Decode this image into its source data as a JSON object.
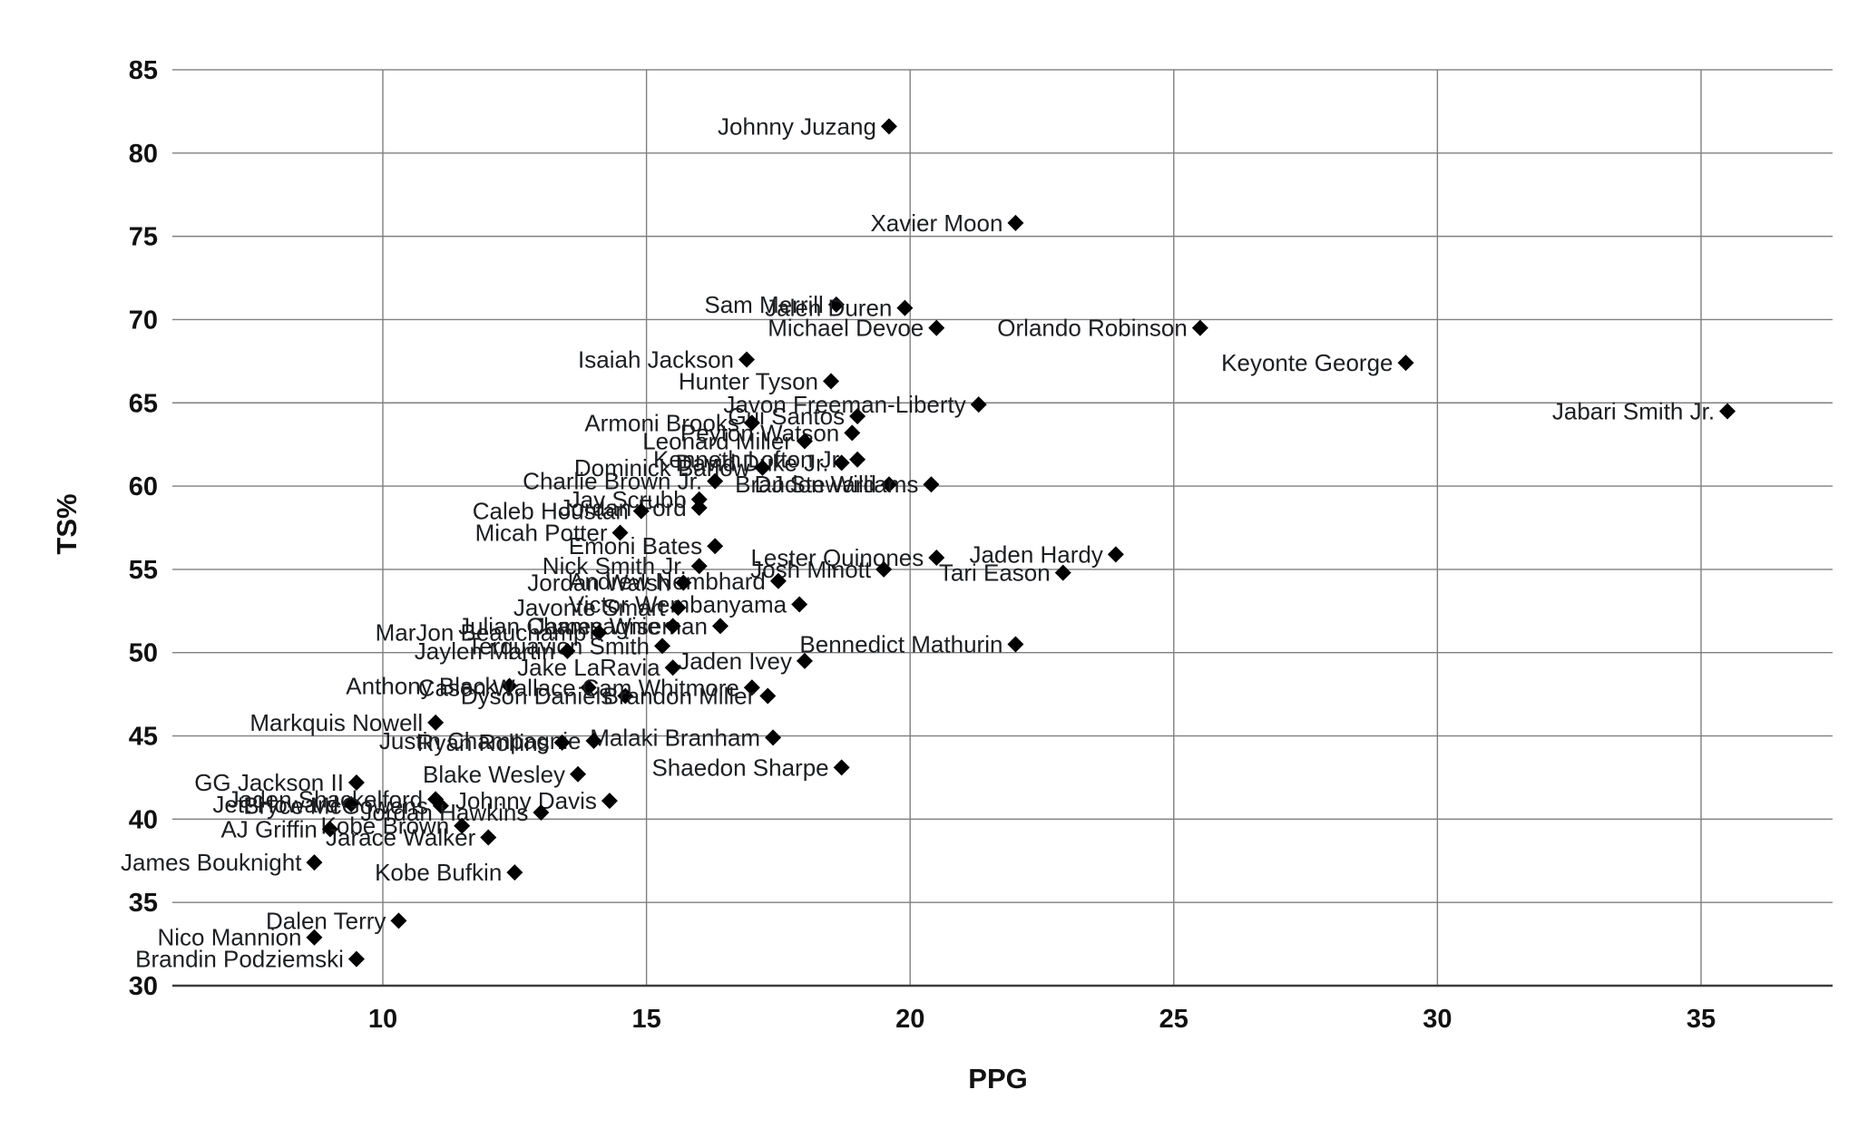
{
  "chart_data": {
    "type": "scatter",
    "title": "",
    "xlabel": "PPG",
    "ylabel": "TS%",
    "xlim": [
      5.3,
      37.5
    ],
    "ylim": [
      30,
      85
    ],
    "x_ticks": [
      10,
      15,
      20,
      25,
      30,
      35
    ],
    "y_ticks": [
      30,
      35,
      40,
      45,
      50,
      55,
      60,
      65,
      70,
      75,
      80,
      85
    ],
    "grid": true,
    "legend": false,
    "marker_shape": "diamond",
    "colors": {
      "marker": "#000000",
      "label_text": "#1c1e21",
      "gridline": "#7f7f7f",
      "axis_line": "#3c3c3c",
      "background": "#ffffff"
    },
    "points": [
      {
        "name": "Johnny Juzang",
        "ppg": 19.6,
        "ts": 81.6
      },
      {
        "name": "Xavier Moon",
        "ppg": 22.0,
        "ts": 75.8
      },
      {
        "name": "Sam Merrill",
        "ppg": 18.6,
        "ts": 70.9
      },
      {
        "name": "Jalen Duren",
        "ppg": 19.9,
        "ts": 70.7
      },
      {
        "name": "Michael Devoe",
        "ppg": 20.5,
        "ts": 69.5
      },
      {
        "name": "Orlando Robinson",
        "ppg": 25.5,
        "ts": 69.5
      },
      {
        "name": "Isaiah Jackson",
        "ppg": 16.9,
        "ts": 67.6
      },
      {
        "name": "Keyonte George",
        "ppg": 29.4,
        "ts": 67.4
      },
      {
        "name": "Hunter Tyson",
        "ppg": 18.5,
        "ts": 66.3
      },
      {
        "name": "Javon Freeman-Liberty",
        "ppg": 21.3,
        "ts": 64.9
      },
      {
        "name": "Jabari Smith Jr.",
        "ppg": 35.5,
        "ts": 64.5
      },
      {
        "name": "Gui Santos",
        "ppg": 19.0,
        "ts": 64.2
      },
      {
        "name": "Armoni Brooks",
        "ppg": 17.0,
        "ts": 63.8
      },
      {
        "name": "Peyton Watson",
        "ppg": 18.9,
        "ts": 63.2
      },
      {
        "name": "Leonard Miller",
        "ppg": 18.0,
        "ts": 62.7
      },
      {
        "name": "Kenneth Lofton Jr.",
        "ppg": 19.0,
        "ts": 61.6
      },
      {
        "name": "David Duke Jr.",
        "ppg": 18.7,
        "ts": 61.4
      },
      {
        "name": "Dominick Barlow",
        "ppg": 17.2,
        "ts": 61.1
      },
      {
        "name": "Charlie Brown Jr.",
        "ppg": 16.3,
        "ts": 60.3
      },
      {
        "name": "DJ Steward",
        "ppg": 19.6,
        "ts": 60.1
      },
      {
        "name": "Brandon Williams",
        "ppg": 20.4,
        "ts": 60.1
      },
      {
        "name": "Jay Scrubb",
        "ppg": 16.0,
        "ts": 59.2
      },
      {
        "name": "Jordan Ford",
        "ppg": 16.0,
        "ts": 58.7
      },
      {
        "name": "Caleb Houstan",
        "ppg": 14.9,
        "ts": 58.5
      },
      {
        "name": "Micah Potter",
        "ppg": 14.5,
        "ts": 57.2
      },
      {
        "name": "Emoni Bates",
        "ppg": 16.3,
        "ts": 56.4
      },
      {
        "name": "Jaden Hardy",
        "ppg": 23.9,
        "ts": 55.9
      },
      {
        "name": "Lester Quinones",
        "ppg": 20.5,
        "ts": 55.7
      },
      {
        "name": "Nick Smith Jr.",
        "ppg": 16.0,
        "ts": 55.2
      },
      {
        "name": "Josh Minott",
        "ppg": 19.5,
        "ts": 55.0
      },
      {
        "name": "Tari Eason",
        "ppg": 22.9,
        "ts": 54.8
      },
      {
        "name": "Andrew Nembhard",
        "ppg": 17.5,
        "ts": 54.3
      },
      {
        "name": "Jordan Walsh",
        "ppg": 15.7,
        "ts": 54.2
      },
      {
        "name": "Victor Wembanyama",
        "ppg": 17.9,
        "ts": 52.9
      },
      {
        "name": "Javonte Smart",
        "ppg": 15.6,
        "ts": 52.7
      },
      {
        "name": "James Wiseman",
        "ppg": 16.4,
        "ts": 51.6
      },
      {
        "name": "Julian Champagnie",
        "ppg": 15.5,
        "ts": 51.6
      },
      {
        "name": "MarJon Beauchamp",
        "ppg": 14.1,
        "ts": 51.2
      },
      {
        "name": "Bennedict Mathurin",
        "ppg": 22.0,
        "ts": 50.5
      },
      {
        "name": "Terquavion Smith",
        "ppg": 15.3,
        "ts": 50.4
      },
      {
        "name": "Jaylen Martin",
        "ppg": 13.5,
        "ts": 50.1
      },
      {
        "name": "Jaden Ivey",
        "ppg": 18.0,
        "ts": 49.5
      },
      {
        "name": "Jake LaRavia",
        "ppg": 15.5,
        "ts": 49.1
      },
      {
        "name": "Anthony Black",
        "ppg": 12.4,
        "ts": 48.0
      },
      {
        "name": "Cason Wallace",
        "ppg": 13.9,
        "ts": 47.9
      },
      {
        "name": "Cam Whitmore",
        "ppg": 17.0,
        "ts": 47.9
      },
      {
        "name": "Dyson Daniels",
        "ppg": 14.6,
        "ts": 47.4
      },
      {
        "name": "Brandon Miller",
        "ppg": 17.3,
        "ts": 47.4
      },
      {
        "name": "Markquis Nowell",
        "ppg": 11.0,
        "ts": 45.8
      },
      {
        "name": "Malaki Branham",
        "ppg": 17.4,
        "ts": 44.9
      },
      {
        "name": "Justin Champagnie",
        "ppg": 14.0,
        "ts": 44.7
      },
      {
        "name": "Ryan Rollins",
        "ppg": 13.4,
        "ts": 44.6
      },
      {
        "name": "Shaedon Sharpe",
        "ppg": 18.7,
        "ts": 43.1
      },
      {
        "name": "Blake Wesley",
        "ppg": 13.7,
        "ts": 42.7
      },
      {
        "name": "GG Jackson II",
        "ppg": 9.5,
        "ts": 42.2
      },
      {
        "name": "Jaden Shackelford",
        "ppg": 11.0,
        "ts": 41.2
      },
      {
        "name": "Johnny Davis",
        "ppg": 14.3,
        "ts": 41.1
      },
      {
        "name": "Jett Howard",
        "ppg": 9.4,
        "ts": 40.9
      },
      {
        "name": "Bryce McGowens",
        "ppg": 11.1,
        "ts": 40.8
      },
      {
        "name": "Jordan Hawkins",
        "ppg": 13.0,
        "ts": 40.4
      },
      {
        "name": "Kobe Brown",
        "ppg": 11.5,
        "ts": 39.6
      },
      {
        "name": "AJ Griffin",
        "ppg": 9.0,
        "ts": 39.4
      },
      {
        "name": "Jarace Walker",
        "ppg": 12.0,
        "ts": 38.9
      },
      {
        "name": "James Bouknight",
        "ppg": 8.7,
        "ts": 37.4
      },
      {
        "name": "Kobe Bufkin",
        "ppg": 12.5,
        "ts": 36.8
      },
      {
        "name": "Dalen Terry",
        "ppg": 10.3,
        "ts": 33.9
      },
      {
        "name": "Nico Mannion",
        "ppg": 8.7,
        "ts": 32.9
      },
      {
        "name": "Brandin Podziemski",
        "ppg": 9.5,
        "ts": 31.6
      }
    ]
  }
}
